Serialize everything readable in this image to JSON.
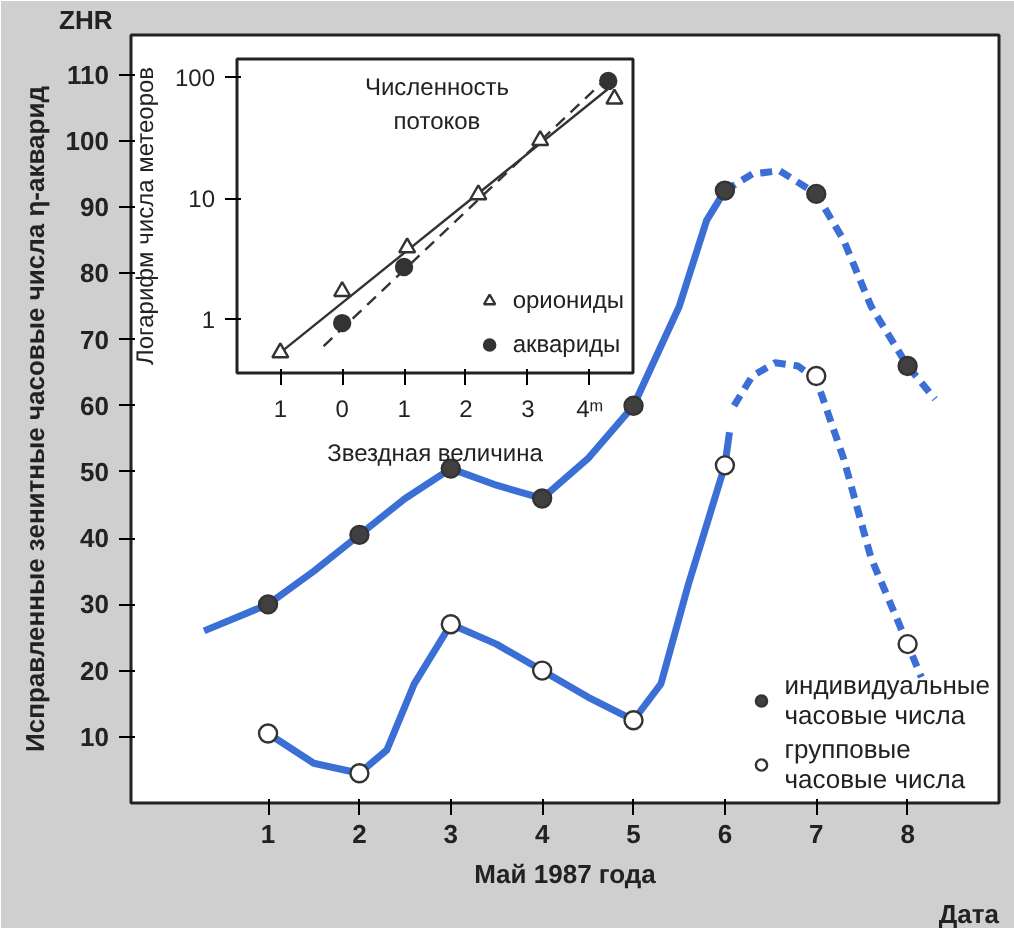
{
  "chart_data": [
    {
      "type": "line",
      "xlabel": "Май 1987 года",
      "ylabel": "Исправленные зенитные часовые числа η-акварид",
      "annotations": [
        "ZHR",
        "Дата"
      ],
      "xlim": [
        -0.5,
        9
      ],
      "ylim": [
        0,
        116
      ],
      "xticks": [
        1,
        2,
        3,
        4,
        5,
        6,
        7,
        8
      ],
      "yticks": [
        10,
        20,
        30,
        40,
        50,
        60,
        70,
        80,
        90,
        100,
        110
      ],
      "grid": false,
      "legend": "bottom right",
      "series": [
        {
          "color": "#3b6fd6",
          "line_style": "solid",
          "x": [
            0.3,
            1,
            1.5,
            2,
            2.5,
            3,
            3.5,
            4,
            4.5,
            5,
            5.5,
            5.8,
            6
          ],
          "values": [
            26,
            30,
            35,
            40.5,
            46,
            50.5,
            48,
            46,
            52,
            60,
            75,
            88,
            92.5
          ]
        },
        {
          "color": "#3b6fd6",
          "line_style": "dashed",
          "x": [
            6,
            6.3,
            6.6,
            7,
            7.3,
            7.6,
            8,
            8.3
          ],
          "values": [
            92.5,
            95,
            95.5,
            92,
            85,
            75,
            66,
            61
          ]
        },
        {
          "color": "#3b6fd6",
          "line_style": "solid",
          "x": [
            1,
            1.5,
            2,
            2.3,
            2.6,
            3,
            3.5,
            4,
            4.5,
            5,
            5.3,
            5.6,
            6,
            6.05
          ],
          "values": [
            10.5,
            6,
            4.5,
            8,
            18,
            27,
            24,
            20,
            16,
            12.5,
            18,
            33,
            51,
            56
          ]
        },
        {
          "color": "#3b6fd6",
          "line_style": "dashed",
          "x": [
            6.1,
            6.3,
            6.55,
            6.8,
            7,
            7.3,
            7.6,
            8,
            8.15
          ],
          "values": [
            60,
            64.5,
            66.5,
            66,
            64,
            52,
            37,
            24,
            19
          ]
        },
        {
          "type": "scatter",
          "name": "индивидуальные\nчасовые числа",
          "color": "#404040",
          "marker": "circle",
          "x": [
            1,
            2,
            3,
            4,
            5,
            6,
            7,
            8
          ],
          "values": [
            30,
            40.5,
            50.5,
            46,
            60,
            92.5,
            92,
            66
          ]
        },
        {
          "type": "scatter",
          "name": "групповые\nчасовые числа",
          "color": "#ffffff",
          "marker": "circle",
          "x": [
            1,
            2,
            3,
            4,
            5,
            6,
            7,
            8
          ],
          "values": [
            10.5,
            4.5,
            27,
            20,
            12.5,
            51,
            64.5,
            24
          ]
        }
      ]
    },
    {
      "type": "scatter",
      "title": "Численность\nпотоков",
      "xlabel": "Звездная величина",
      "ylabel": "Логарифм числа метеоров",
      "log": true,
      "xlim": [
        -1.7,
        4.7
      ],
      "ylim": [
        0.36,
        141
      ],
      "xticks": [
        {
          "value": -1,
          "label": "1"
        },
        0,
        1,
        2,
        3,
        {
          "value": 4,
          "label": "4ᵐ"
        }
      ],
      "yticks": [
        1,
        10,
        100
      ],
      "grid": false,
      "legend": "bottom right",
      "series": [
        {
          "type": "line",
          "color": "#333333",
          "line_style": "solid",
          "x": [
            -1,
            4.3
          ],
          "values": [
            0.53,
            80
          ]
        },
        {
          "type": "line",
          "color": "#333333",
          "line_style": "dashed",
          "x": [
            -0.3,
            4.2
          ],
          "values": [
            0.6,
            90
          ]
        },
        {
          "name": "ориониды",
          "color": "#ffffff",
          "marker": "triangle",
          "x": [
            -1,
            0,
            1.05,
            2.2,
            3.2,
            4.4
          ],
          "values": [
            0.53,
            1.7,
            3.9,
            10.7,
            30,
            66
          ]
        },
        {
          "name": "аквариды",
          "color": "#333333",
          "marker": "circle",
          "x": [
            0,
            1,
            4.3
          ],
          "values": [
            0.93,
            2.7,
            93
          ]
        }
      ]
    }
  ]
}
